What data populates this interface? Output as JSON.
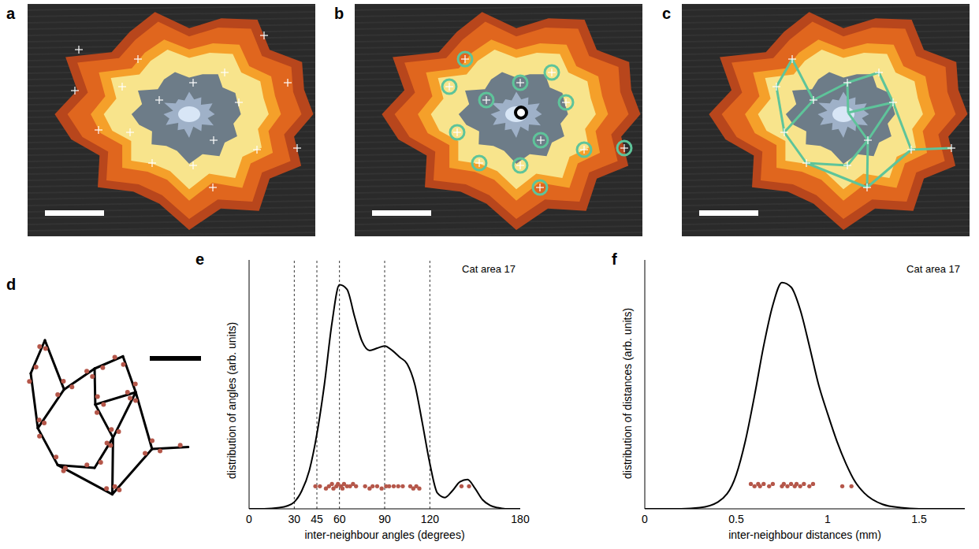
{
  "panel_labels": [
    "a",
    "b",
    "c",
    "d"
  ],
  "chart_data": [
    {
      "panel": "e",
      "type": "line",
      "annotation": "Cat area 17",
      "x_label": "inter-neighbour angles (degrees)",
      "y_label": "distribution of angles (arb. units)",
      "xlim": [
        0,
        180
      ],
      "xticks": [
        0,
        30,
        45,
        60,
        90,
        120,
        180
      ],
      "ylim": [
        0,
        1.1
      ],
      "tick_labels": "x",
      "reference_lines": [
        30,
        45,
        60,
        90,
        120
      ],
      "series": [
        {
          "type": "line",
          "color": "#000000",
          "x": [
            0,
            10,
            20,
            25,
            30,
            35,
            40,
            45,
            50,
            55,
            60,
            65,
            70,
            75,
            80,
            85,
            90,
            95,
            100,
            105,
            110,
            115,
            120,
            125,
            130,
            135,
            140,
            145,
            150,
            155,
            160,
            165,
            170,
            180
          ],
          "values": [
            0,
            0,
            0.005,
            0.012,
            0.03,
            0.08,
            0.17,
            0.33,
            0.55,
            0.82,
            0.99,
            0.97,
            0.85,
            0.74,
            0.7,
            0.71,
            0.72,
            0.7,
            0.67,
            0.64,
            0.55,
            0.38,
            0.2,
            0.07,
            0.05,
            0.08,
            0.12,
            0.13,
            0.09,
            0.04,
            0.015,
            0.005,
            0,
            0
          ]
        },
        {
          "type": "scatter",
          "color": "#b5574a",
          "x": [
            44,
            47,
            51,
            53,
            55,
            56,
            58,
            59,
            61,
            62,
            63,
            65,
            67,
            69,
            71,
            77,
            80,
            82,
            85,
            88,
            91,
            93,
            96,
            99,
            102,
            107,
            109,
            111,
            113,
            141,
            146
          ],
          "values": [
            0.1,
            0.1,
            0.09,
            0.1,
            0.11,
            0.09,
            0.1,
            0.11,
            0.1,
            0.09,
            0.11,
            0.1,
            0.1,
            0.11,
            0.1,
            0.1,
            0.09,
            0.1,
            0.1,
            0.09,
            0.1,
            0.1,
            0.1,
            0.1,
            0.1,
            0.1,
            0.09,
            0.1,
            0.09,
            0.1,
            0.1
          ]
        }
      ]
    },
    {
      "panel": "f",
      "type": "line",
      "annotation": "Cat area 17",
      "x_label": "inter-neighbour distances (mm)",
      "y_label": "distribution of distances (arb. units)",
      "xlim": [
        0,
        1.75
      ],
      "xticks": [
        0,
        0.5,
        1,
        1.5
      ],
      "ylim": [
        0,
        1.1
      ],
      "tick_labels": "x",
      "series": [
        {
          "type": "line",
          "color": "#000000",
          "x": [
            0,
            0.1,
            0.2,
            0.3,
            0.4,
            0.5,
            0.55,
            0.6,
            0.65,
            0.7,
            0.75,
            0.8,
            0.85,
            0.9,
            0.95,
            1.0,
            1.05,
            1.1,
            1.15,
            1.2,
            1.3,
            1.4,
            1.5,
            1.6,
            1.75
          ],
          "values": [
            0,
            0,
            0,
            0.005,
            0.03,
            0.15,
            0.3,
            0.5,
            0.72,
            0.9,
            1.0,
            0.98,
            0.88,
            0.72,
            0.55,
            0.42,
            0.3,
            0.2,
            0.12,
            0.07,
            0.02,
            0.005,
            0,
            0,
            0
          ]
        },
        {
          "type": "scatter",
          "color": "#b5574a",
          "x": [
            0.58,
            0.6,
            0.62,
            0.63,
            0.65,
            0.68,
            0.7,
            0.75,
            0.76,
            0.78,
            0.8,
            0.82,
            0.83,
            0.85,
            0.87,
            0.9,
            0.92,
            1.08,
            1.13
          ],
          "values": [
            0.11,
            0.1,
            0.11,
            0.1,
            0.11,
            0.1,
            0.11,
            0.1,
            0.11,
            0.1,
            0.11,
            0.1,
            0.11,
            0.1,
            0.11,
            0.1,
            0.11,
            0.1,
            0.1
          ]
        }
      ]
    }
  ]
}
